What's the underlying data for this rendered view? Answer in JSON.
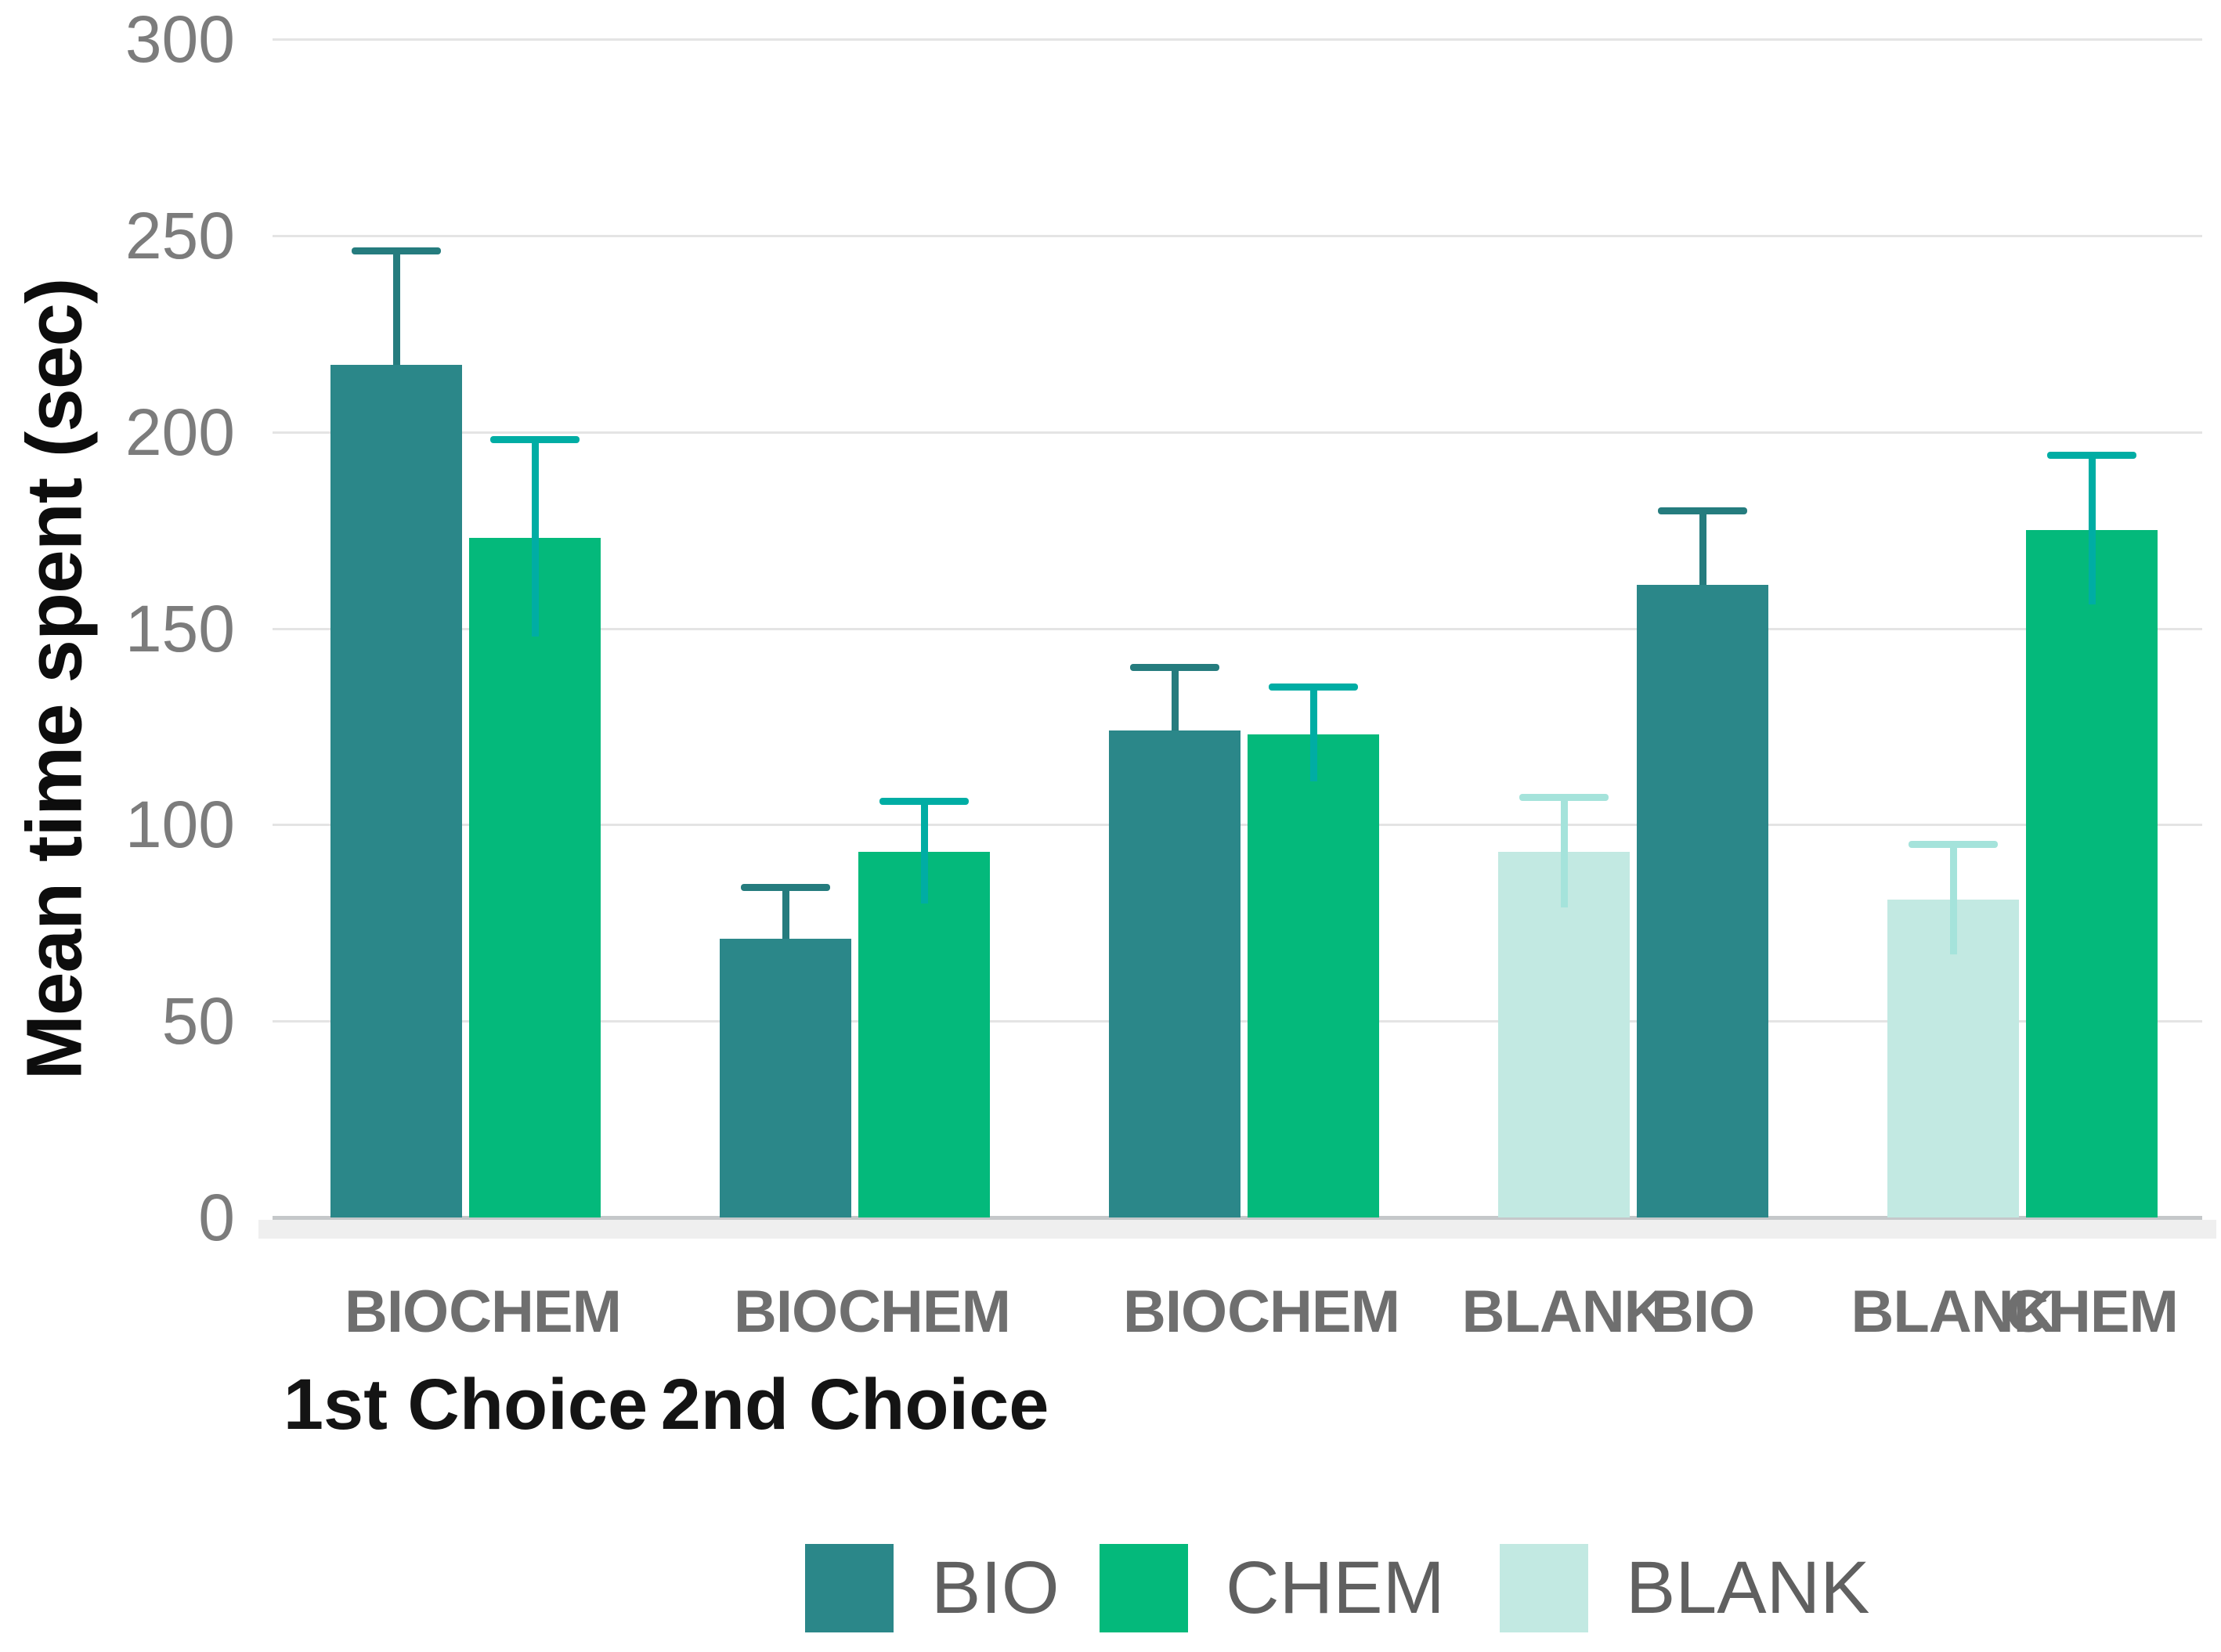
{
  "chart_data": {
    "type": "bar",
    "title": "",
    "xlabel": "",
    "ylabel": "Mean time spent (sec)",
    "ylim": [
      0,
      300
    ],
    "yticks": [
      0,
      50,
      100,
      150,
      200,
      250,
      300
    ],
    "grid": true,
    "legend": [
      "BIO",
      "CHEM",
      "BLANK"
    ],
    "legend_position": "bottom",
    "colors": {
      "BIO": "#2B8789",
      "CHEM": "#04B97B",
      "BLANK": "#C2E9E2"
    },
    "error_colors": {
      "BIO": "#257C7E",
      "CHEM": "#00ADA4",
      "BLANK": "#A5E3DB"
    },
    "groups": [
      {
        "label": "1st Choice",
        "bars": [
          {
            "series": "BIO",
            "category": "BIO",
            "value": 217,
            "error": 29
          },
          {
            "series": "CHEM",
            "category": "CHEM",
            "value": 173,
            "error": 25
          }
        ]
      },
      {
        "label": "2nd Choice",
        "bars": [
          {
            "series": "BIO",
            "category": "BIO",
            "value": 71,
            "error": 13
          },
          {
            "series": "CHEM",
            "category": "CHEM",
            "value": 93,
            "error": 13
          }
        ]
      },
      {
        "label": "",
        "bars": [
          {
            "series": "BIO",
            "category": "BIO",
            "value": 124,
            "error": 16
          },
          {
            "series": "CHEM",
            "category": "CHEM",
            "value": 123,
            "error": 12
          }
        ]
      },
      {
        "label": "",
        "bars": [
          {
            "series": "BLANK",
            "category": "BLANK",
            "value": 93,
            "error": 14
          },
          {
            "series": "BIO",
            "category": "BIO",
            "value": 161,
            "error": 19
          }
        ]
      },
      {
        "label": "",
        "bars": [
          {
            "series": "BLANK",
            "category": "BLANK",
            "value": 81,
            "error": 14
          },
          {
            "series": "CHEM",
            "category": "CHEM",
            "value": 175,
            "error": 19
          }
        ]
      }
    ]
  }
}
